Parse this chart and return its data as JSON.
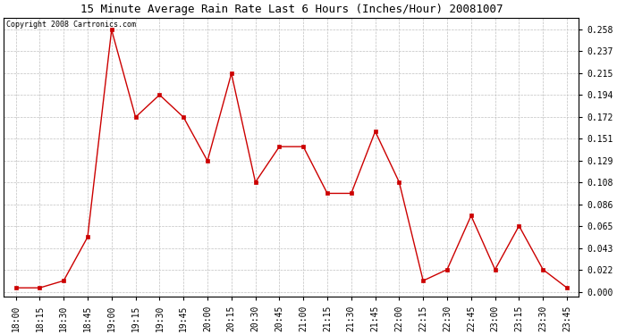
{
  "title": "15 Minute Average Rain Rate Last 6 Hours (Inches/Hour) 20081007",
  "copyright": "Copyright 2008 Cartronics.com",
  "x_labels": [
    "18:00",
    "18:15",
    "18:30",
    "18:45",
    "19:00",
    "19:15",
    "19:30",
    "19:45",
    "20:00",
    "20:15",
    "20:30",
    "20:45",
    "21:00",
    "21:15",
    "21:30",
    "21:45",
    "22:00",
    "22:15",
    "22:30",
    "22:45",
    "23:00",
    "23:15",
    "23:30",
    "23:45"
  ],
  "y_values": [
    0.004,
    0.004,
    0.011,
    0.054,
    0.258,
    0.172,
    0.194,
    0.172,
    0.129,
    0.215,
    0.108,
    0.143,
    0.143,
    0.097,
    0.097,
    0.158,
    0.108,
    0.011,
    0.022,
    0.075,
    0.022,
    0.065,
    0.022,
    0.004
  ],
  "y_ticks": [
    0.0,
    0.022,
    0.043,
    0.065,
    0.086,
    0.108,
    0.129,
    0.151,
    0.172,
    0.194,
    0.215,
    0.237,
    0.258
  ],
  "line_color": "#cc0000",
  "marker": "s",
  "marker_size": 2.5,
  "background_color": "#ffffff",
  "grid_color": "#c0c0c0",
  "title_fontsize": 9,
  "copyright_fontsize": 6,
  "tick_fontsize": 7,
  "ylim": [
    -0.005,
    0.27
  ]
}
